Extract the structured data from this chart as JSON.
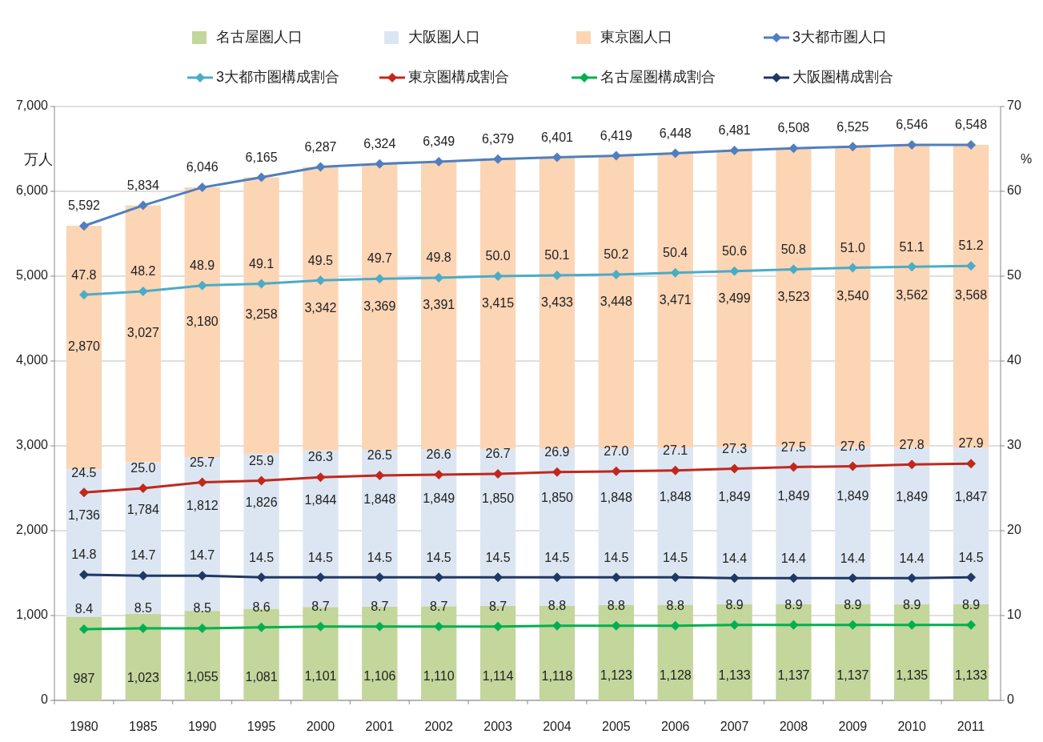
{
  "chart_data": {
    "type": "bar",
    "stacked": true,
    "ylabel": "万人",
    "y2label": "%",
    "grid": "y",
    "legend": "top",
    "marker": "diamond",
    "line_style": "solid",
    "categories": [
      "1980",
      "1985",
      "1990",
      "1995",
      "2000",
      "2001",
      "2002",
      "2003",
      "2004",
      "2005",
      "2006",
      "2007",
      "2008",
      "2009",
      "2010",
      "2011"
    ],
    "ylim": [
      0,
      7000
    ],
    "yticks": [
      {
        "value": 0,
        "label": "0"
      },
      {
        "value": 1000,
        "label": "1,000"
      },
      {
        "value": 2000,
        "label": "2,000"
      },
      {
        "value": 3000,
        "label": "3,000"
      },
      {
        "value": 4000,
        "label": "4,000"
      },
      {
        "value": 5000,
        "label": "5,000"
      },
      {
        "value": 6000,
        "label": "6,000"
      },
      {
        "value": 7000,
        "label": "7,000"
      }
    ],
    "y2lim": [
      0,
      70
    ],
    "y2ticks": [
      0,
      10,
      20,
      30,
      40,
      50,
      60,
      70
    ],
    "series": [
      {
        "name": "名古屋圏人口",
        "color": "#c3d69b",
        "values": [
          987,
          1023,
          1055,
          1081,
          1101,
          1106,
          1110,
          1114,
          1118,
          1123,
          1128,
          1133,
          1137,
          1137,
          1135,
          1133
        ],
        "value_labels": [
          "987",
          "1,023",
          "1,055",
          "1,081",
          "1,101",
          "1,106",
          "1,110",
          "1,114",
          "1,118",
          "1,123",
          "1,128",
          "1,133",
          "1,137",
          "1,137",
          "1,135",
          "1,133"
        ]
      },
      {
        "name": "大阪圏人口",
        "color": "#dce6f2",
        "values": [
          1736,
          1784,
          1812,
          1826,
          1844,
          1848,
          1849,
          1850,
          1850,
          1848,
          1848,
          1849,
          1849,
          1849,
          1849,
          1847
        ],
        "value_labels": [
          "1,736",
          "1,784",
          "1,812",
          "1,826",
          "1,844",
          "1,848",
          "1,849",
          "1,850",
          "1,850",
          "1,848",
          "1,848",
          "1,849",
          "1,849",
          "1,849",
          "1,849",
          "1,847"
        ]
      },
      {
        "name": "東京圏人口",
        "color": "#fcd5b5",
        "values": [
          2870,
          3027,
          3180,
          3258,
          3342,
          3369,
          3391,
          3415,
          3433,
          3448,
          3471,
          3499,
          3523,
          3540,
          3562,
          3568
        ],
        "value_labels": [
          "2,870",
          "3,027",
          "3,180",
          "3,258",
          "3,342",
          "3,369",
          "3,391",
          "3,415",
          "3,433",
          "3,448",
          "3,471",
          "3,499",
          "3,523",
          "3,540",
          "3,562",
          "3,568"
        ]
      },
      {
        "name": "3大都市圏人口",
        "type": "line",
        "color": "#4f7fbf",
        "values": [
          5592,
          5834,
          6046,
          6165,
          6287,
          6324,
          6349,
          6379,
          6401,
          6419,
          6448,
          6481,
          6508,
          6525,
          6546,
          6548
        ],
        "value_labels": [
          "5,592",
          "5,834",
          "6,046",
          "6,165",
          "6,287",
          "6,324",
          "6,349",
          "6,379",
          "6,401",
          "6,419",
          "6,448",
          "6,481",
          "6,508",
          "6,525",
          "6,546",
          "6,548"
        ]
      },
      {
        "name": "3大都市圏構成割合",
        "type": "line",
        "axis": "y2",
        "color": "#4bacc6",
        "values": [
          47.8,
          48.2,
          48.9,
          49.1,
          49.5,
          49.7,
          49.8,
          50.0,
          50.1,
          50.2,
          50.4,
          50.6,
          50.8,
          51.0,
          51.1,
          51.2
        ],
        "value_labels": [
          "47.8",
          "48.2",
          "48.9",
          "49.1",
          "49.5",
          "49.7",
          "49.8",
          "50.0",
          "50.1",
          "50.2",
          "50.4",
          "50.6",
          "50.8",
          "51.0",
          "51.1",
          "51.2"
        ]
      },
      {
        "name": "東京圏構成割合",
        "type": "line",
        "axis": "y2",
        "color": "#c0281e",
        "values": [
          24.5,
          25.0,
          25.7,
          25.9,
          26.3,
          26.5,
          26.6,
          26.7,
          26.9,
          27.0,
          27.1,
          27.3,
          27.5,
          27.6,
          27.8,
          27.9
        ],
        "value_labels": [
          "24.5",
          "25.0",
          "25.7",
          "25.9",
          "26.3",
          "26.5",
          "26.6",
          "26.7",
          "26.9",
          "27.0",
          "27.1",
          "27.3",
          "27.5",
          "27.6",
          "27.8",
          "27.9"
        ]
      },
      {
        "name": "名古屋圏構成割合",
        "type": "line",
        "axis": "y2",
        "color": "#00b050",
        "values": [
          8.4,
          8.5,
          8.5,
          8.6,
          8.7,
          8.7,
          8.7,
          8.7,
          8.8,
          8.8,
          8.8,
          8.9,
          8.9,
          8.9,
          8.9,
          8.9
        ],
        "value_labels": [
          "8.4",
          "8.5",
          "8.5",
          "8.6",
          "8.7",
          "8.7",
          "8.7",
          "8.7",
          "8.8",
          "8.8",
          "8.8",
          "8.9",
          "8.9",
          "8.9",
          "8.9",
          "8.9"
        ]
      },
      {
        "name": "大阪圏構成割合",
        "type": "line",
        "axis": "y2",
        "color": "#1f3864",
        "values": [
          14.8,
          14.7,
          14.7,
          14.5,
          14.5,
          14.5,
          14.5,
          14.5,
          14.5,
          14.5,
          14.5,
          14.4,
          14.4,
          14.4,
          14.4,
          14.5
        ],
        "value_labels": [
          "14.8",
          "14.7",
          "14.7",
          "14.5",
          "14.5",
          "14.5",
          "14.5",
          "14.5",
          "14.5",
          "14.5",
          "14.5",
          "14.4",
          "14.4",
          "14.4",
          "14.4",
          "14.5"
        ]
      }
    ]
  }
}
